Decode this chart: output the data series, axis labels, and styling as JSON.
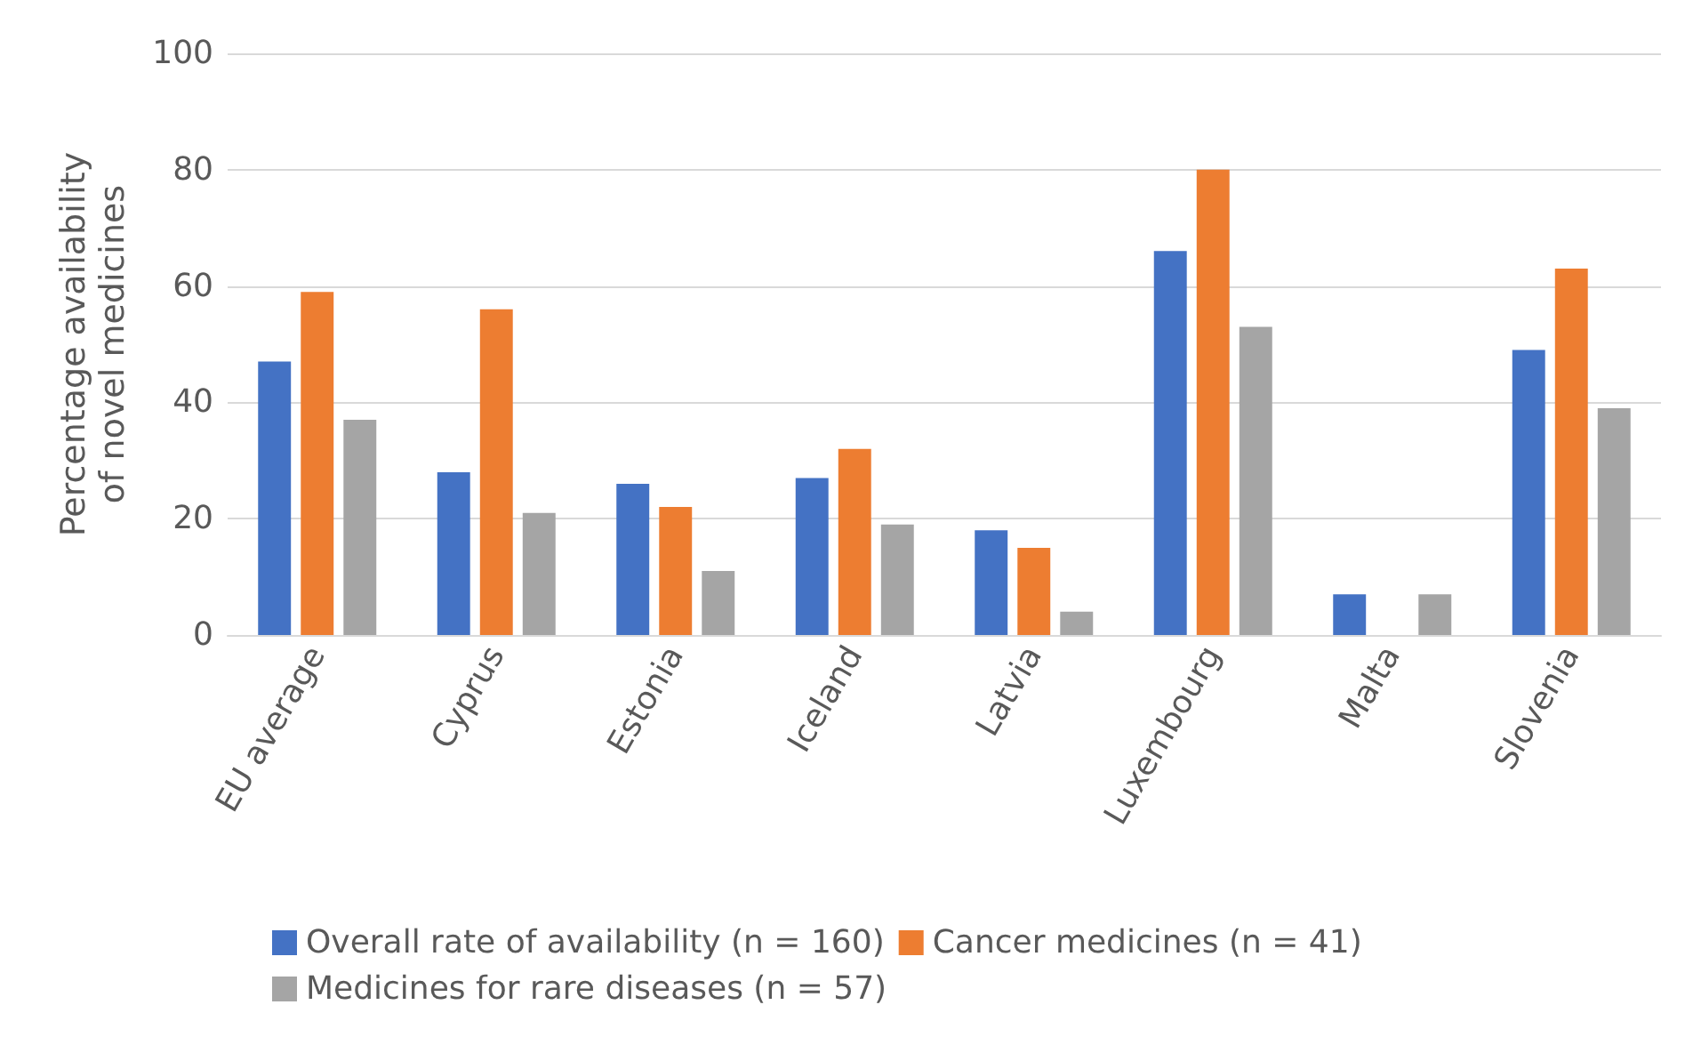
{
  "chart_data": {
    "type": "bar",
    "ylabel": "Percentage availability\nof novel medicines",
    "categories": [
      "EU average",
      "Cyprus",
      "Estonia",
      "Iceland",
      "Latvia",
      "Luxembourg",
      "Malta",
      "Slovenia"
    ],
    "series": [
      {
        "name": "Overall rate of availability (n = 160)",
        "color": "#4472c4",
        "values": [
          47,
          28,
          26,
          27,
          18,
          66,
          7,
          49
        ]
      },
      {
        "name": "Cancer medicines (n = 41)",
        "color": "#ed7d31",
        "values": [
          59,
          56,
          22,
          32,
          15,
          80,
          0,
          63
        ]
      },
      {
        "name": "Medicines for rare diseases (n = 57)",
        "color": "#a5a5a5",
        "values": [
          37,
          21,
          11,
          19,
          4,
          53,
          7,
          39
        ]
      }
    ],
    "ylim": [
      0,
      100
    ],
    "yticks": [
      0,
      20,
      40,
      60,
      80,
      100
    ],
    "grid": "y",
    "legend": "bottom"
  }
}
